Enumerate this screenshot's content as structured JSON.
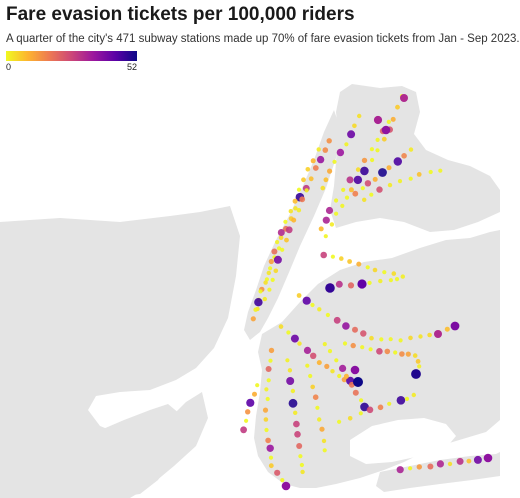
{
  "header": {
    "title": "Fare evasion tickets per 100,000 riders",
    "subtitle": "A quarter of the city's 471 subway stations made up 70% of fare evasion tickets from Jan - Sep 2023."
  },
  "legend": {
    "min_label": "0",
    "max_label": "52",
    "min_value": 0,
    "max_value": 52,
    "color_scale": [
      "#f0f921",
      "#fdb42f",
      "#ed7953",
      "#cc4778",
      "#9c179e",
      "#5c01a6",
      "#0d0887"
    ]
  },
  "map": {
    "land_color": "#e3e3e3",
    "water_color": "#ffffff",
    "station_count": 471
  }
}
